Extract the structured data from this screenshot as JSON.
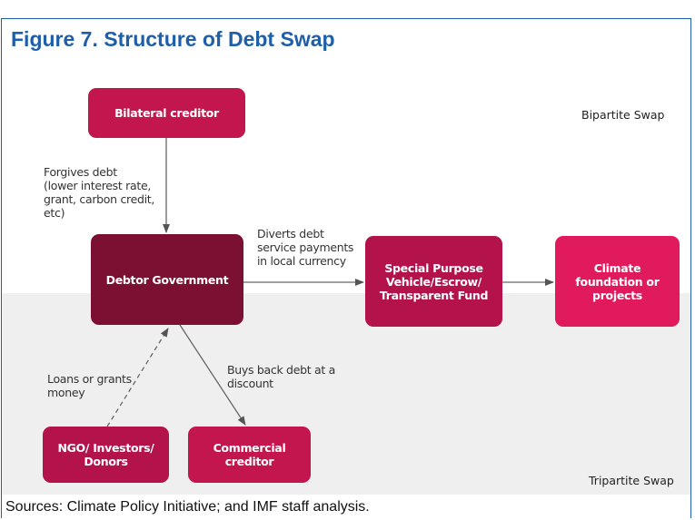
{
  "title": "Figure 7. Structure of Debt Swap",
  "regions": {
    "bipartite": "Bipartite Swap",
    "tripartite": "Tripartite Swap"
  },
  "nodes": [
    {
      "id": "bilateral",
      "lines": [
        "Bilateral creditor"
      ]
    },
    {
      "id": "debtor",
      "lines": [
        "Debtor Government"
      ]
    },
    {
      "id": "spv",
      "lines": [
        "Special Purpose",
        "Vehicle/Escrow/",
        "Transparent Fund"
      ]
    },
    {
      "id": "climate",
      "lines": [
        "Climate",
        "foundation or",
        "projects"
      ]
    },
    {
      "id": "ngo",
      "lines": [
        "NGO/ Investors/",
        "Donors"
      ]
    },
    {
      "id": "commercial",
      "lines": [
        "Commercial",
        "creditor"
      ]
    }
  ],
  "annotations": [
    {
      "lines": [
        "Forgives debt",
        "(lower interest rate,",
        "grant, carbon credit,",
        "etc)"
      ]
    },
    {
      "lines": [
        "Diverts debt",
        "service payments",
        "in local currency"
      ]
    },
    {
      "lines": [
        "Loans or grants",
        "money"
      ]
    },
    {
      "lines": [
        "Buys back debt at a",
        "discount"
      ]
    }
  ],
  "source": "Sources: Climate Policy Initiative; and IMF staff analysis."
}
